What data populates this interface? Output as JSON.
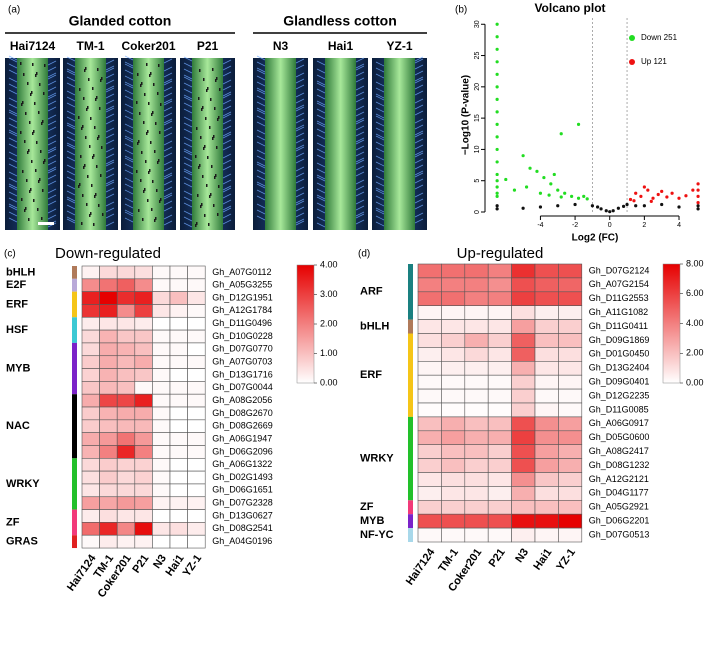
{
  "panel_a": {
    "label": "(a)",
    "groups": [
      {
        "name": "Glanded cotton",
        "samples": [
          "Hai7124",
          "TM-1",
          "Coker201",
          "P21"
        ]
      },
      {
        "name": "Glandless cotton",
        "samples": [
          "N3",
          "Hai1",
          "YZ-1"
        ]
      }
    ]
  },
  "chart_data": [
    {
      "type": "scatter",
      "label": "(b)",
      "title": "Volcano plot",
      "x_label": "Log2 (FC)",
      "y_label": "−Log10 (P-value)",
      "xlim": [
        -7.2,
        5.5
      ],
      "ylim": [
        0,
        31
      ],
      "xticks": [
        -4,
        -2,
        0,
        2,
        4
      ],
      "yticks": [
        0,
        5,
        10,
        15,
        20,
        25,
        30
      ],
      "thresholds": [
        -1,
        1
      ],
      "legend": "top-right",
      "series": [
        {
          "name": "Down 251",
          "color": "#22dd22",
          "x": [
            -6.5,
            -6.5,
            -6.5,
            -6.5,
            -6.5,
            -6.5,
            -6.5,
            -6.5,
            -6.5,
            -6.5,
            -6.5,
            -6.5,
            -6.5,
            -6.5,
            -6.5,
            -6.5,
            -6.5,
            -5,
            -4.6,
            -4.2,
            -3.8,
            -3.4,
            -3,
            -2.6,
            -2.2,
            -1.8,
            -1.5,
            -4,
            -3.5,
            -2.8,
            -4.8,
            -3.2,
            -1.8,
            -2.8,
            -1.3,
            -5.5,
            -6
          ],
          "values": [
            30,
            28,
            26,
            24,
            22,
            20,
            18,
            16,
            14,
            12,
            10,
            8,
            6,
            5,
            4,
            3,
            2.5,
            9,
            7,
            6.5,
            5.5,
            4.5,
            3.5,
            3,
            2.5,
            2.2,
            2.5,
            3,
            2.7,
            2.4,
            4,
            6,
            14,
            12.5,
            2.1,
            3.5,
            5.2
          ]
        },
        {
          "name": "Up 121",
          "color": "#ee1111",
          "x": [
            1.2,
            1.5,
            1.8,
            2,
            2.2,
            2.5,
            2.8,
            3,
            3.3,
            3.6,
            4,
            4.4,
            1.4,
            2.4,
            4.8,
            5.1,
            5.1,
            5.1,
            5.1
          ],
          "values": [
            2,
            3,
            2.5,
            4,
            3.5,
            2.2,
            2.8,
            3.3,
            2.4,
            3,
            2.2,
            2.6,
            1.8,
            1.7,
            3.5,
            1.5,
            2.5,
            3.5,
            4.5
          ]
        },
        {
          "color": "#111111",
          "x": [
            -1,
            -0.7,
            -0.5,
            -0.2,
            0,
            0.2,
            0.5,
            0.8,
            1,
            1.5,
            2,
            3,
            4,
            -2,
            -3,
            -4,
            -5,
            -6.5,
            -6.5,
            5.1,
            5.1
          ],
          "values": [
            1,
            0.8,
            0.5,
            0.2,
            0.05,
            0.2,
            0.6,
            0.9,
            1.2,
            1,
            1,
            1.2,
            0.8,
            1.2,
            1,
            0.8,
            0.6,
            1,
            0.5,
            0.5,
            1
          ]
        }
      ]
    },
    {
      "type": "heatmap",
      "label": "(c)",
      "title": "Down-regulated",
      "categories": [
        "Hai7124",
        "TM-1",
        "Coker201",
        "P21",
        "N3",
        "Hai1",
        "YZ-1"
      ],
      "colors": [
        "#ffffff",
        "#e60000"
      ],
      "zlim": [
        0,
        4
      ],
      "zticks": [
        {
          "value": 4,
          "label": "4.00"
        },
        {
          "value": 3,
          "label": "3.00"
        },
        {
          "value": 2,
          "label": "2.00"
        },
        {
          "value": 1,
          "label": "1.00"
        },
        {
          "value": 0,
          "label": "0.00"
        }
      ],
      "groups": [
        {
          "name": "bHLH",
          "color": "#b07a5a",
          "rows": [
            "Gh_A07G0112"
          ]
        },
        {
          "name": "E2F",
          "color": "#b9a9d8",
          "rows": [
            "Gh_A05G3255"
          ]
        },
        {
          "name": "ERF",
          "color": "#f5c518",
          "rows": [
            "Gh_D12G1951",
            "Gh_A12G1784"
          ]
        },
        {
          "name": "HSF",
          "color": "#3cc9d4",
          "rows": [
            "Gh_D11G0496",
            "Gh_D10G0228"
          ]
        },
        {
          "name": "MYB",
          "color": "#7b22c8",
          "rows": [
            "Gh_D07G0770",
            "Gh_A07G0703",
            "Gh_D13G1716",
            "Gh_D07G0044"
          ]
        },
        {
          "name": "NAC",
          "color": "#000000",
          "rows": [
            "Gh_A08G2056",
            "Gh_D08G2670",
            "Gh_D08G2669",
            "Gh_A06G1947",
            "Gh_D06G2096"
          ]
        },
        {
          "name": "WRKY",
          "color": "#22c02a",
          "rows": [
            "Gh_A06G1322",
            "Gh_D02G1493",
            "Gh_D06G1651",
            "Gh_D07G2328"
          ]
        },
        {
          "name": "ZF",
          "color": "#f23a7a",
          "rows": [
            "Gh_D13G0627",
            "Gh_D08G2541"
          ]
        },
        {
          "name": "GRAS",
          "color": "#e02020",
          "rows": [
            "Gh_A04G0196"
          ]
        }
      ],
      "values": [
        [
          0.2,
          0.6,
          0.6,
          0.5,
          0.1,
          0.1,
          0.1
        ],
        [
          1.8,
          2.2,
          2.5,
          1.8,
          0.1,
          0.1,
          0.1
        ],
        [
          3.5,
          4,
          3.3,
          3.5,
          0.6,
          1,
          0.4
        ],
        [
          3.2,
          3.5,
          1.8,
          3,
          0.4,
          0.2,
          0.1
        ],
        [
          0.3,
          0.4,
          0.4,
          0.3,
          0,
          0,
          0
        ],
        [
          0.6,
          1.2,
          0.9,
          0.9,
          0.1,
          0.1,
          0.1
        ],
        [
          0.6,
          1.3,
          1.2,
          1,
          0.1,
          0.1,
          0
        ],
        [
          0.8,
          1.3,
          1.1,
          1.3,
          0.1,
          0.1,
          0.1
        ],
        [
          0.7,
          1.2,
          1,
          0.9,
          0.1,
          0,
          0
        ],
        [
          0.9,
          1.1,
          1,
          0.1,
          0.1,
          0.1,
          0.1
        ],
        [
          1.3,
          2.9,
          2.9,
          3.5,
          0.1,
          0.1,
          0.1
        ],
        [
          0.8,
          1.2,
          1.3,
          1.3,
          0.1,
          0,
          0
        ],
        [
          0.8,
          1,
          1.1,
          1.1,
          0.1,
          0,
          0
        ],
        [
          1.3,
          1.6,
          2.2,
          1.6,
          0.1,
          0.1,
          0.1
        ],
        [
          1.2,
          2,
          3.4,
          2,
          0.1,
          0.1,
          0.1
        ],
        [
          0.6,
          0.8,
          0.7,
          0.7,
          0.1,
          0,
          0
        ],
        [
          0.5,
          0.8,
          0.6,
          0.7,
          0.1,
          0,
          0
        ],
        [
          0.4,
          0.6,
          0.6,
          0.6,
          0.1,
          0,
          0
        ],
        [
          1.5,
          1.4,
          1.6,
          1.5,
          0.2,
          0.2,
          0.2
        ],
        [
          0.3,
          0.5,
          0.4,
          0.4,
          0,
          0,
          0
        ],
        [
          2.3,
          3.4,
          1.9,
          3.8,
          0.4,
          0.5,
          0.3
        ],
        [
          0.1,
          0.3,
          0.2,
          0.2,
          0,
          0,
          0
        ]
      ]
    },
    {
      "type": "heatmap",
      "label": "(d)",
      "title": "Up-regulated",
      "categories": [
        "Hai7124",
        "TM-1",
        "Coker201",
        "P21",
        "N3",
        "Hai1",
        "YZ-1"
      ],
      "colors": [
        "#ffffff",
        "#e60000"
      ],
      "zlim": [
        0,
        8
      ],
      "zticks": [
        {
          "value": 8,
          "label": "8.00"
        },
        {
          "value": 6,
          "label": "6.00"
        },
        {
          "value": 4,
          "label": "4.00"
        },
        {
          "value": 2,
          "label": "2.00"
        },
        {
          "value": 0,
          "label": "0.00"
        }
      ],
      "groups": [
        {
          "name": "ARF",
          "color": "#1a8080",
          "rows": [
            "Gh_D07G2124",
            "Gh_A07G2154",
            "Gh_D11G2553",
            "Gh_A11G1082"
          ]
        },
        {
          "name": "bHLH",
          "color": "#b07a5a",
          "rows": [
            "Gh_D11G0411"
          ]
        },
        {
          "name": "ERF",
          "color": "#f5c518",
          "rows": [
            "Gh_D09G1869",
            "Gh_D01G0450",
            "Gh_D13G2404",
            "Gh_D09G0401",
            "Gh_D12G2235",
            "Gh_D11G0085"
          ]
        },
        {
          "name": "WRKY",
          "color": "#22c02a",
          "rows": [
            "Gh_A06G0917",
            "Gh_D05G0600",
            "Gh_A08G2417",
            "Gh_D08G1232",
            "Gh_A12G2121",
            "Gh_D04G1177"
          ]
        },
        {
          "name": "ZF",
          "color": "#f23a7a",
          "rows": [
            "Gh_A05G2921"
          ]
        },
        {
          "name": "MYB",
          "color": "#7b22c8",
          "rows": [
            "Gh_D06G2201"
          ]
        },
        {
          "name": "NF-YC",
          "color": "#a8d8ea",
          "rows": [
            "Gh_D07G0513"
          ]
        }
      ],
      "values": [
        [
          4.5,
          4.5,
          4.5,
          4,
          6.5,
          5.5,
          5.5
        ],
        [
          4,
          4,
          4,
          3.5,
          5.5,
          5,
          4.8
        ],
        [
          4.5,
          4.5,
          4,
          4,
          6,
          5.5,
          5.5
        ],
        [
          0.3,
          0.3,
          0.3,
          0.3,
          1,
          0.5,
          0.5
        ],
        [
          0.8,
          0.8,
          0.8,
          0.8,
          3,
          1.5,
          1.5
        ],
        [
          1,
          1.5,
          2.5,
          1.5,
          5,
          2,
          2
        ],
        [
          0.5,
          0.8,
          1.2,
          0.8,
          5,
          1,
          1
        ],
        [
          0.3,
          0.5,
          0.5,
          0.5,
          2.5,
          0.8,
          0.8
        ],
        [
          0.2,
          0.2,
          0.2,
          0.2,
          1.5,
          0.3,
          0.3
        ],
        [
          0.2,
          0.2,
          0.2,
          0.2,
          1.5,
          0.2,
          0.2
        ],
        [
          0.1,
          0.1,
          0.1,
          0.1,
          1.5,
          0.3,
          0.2
        ],
        [
          2,
          2.5,
          2,
          2,
          5.5,
          3.5,
          3
        ],
        [
          2.5,
          3,
          2.5,
          2.5,
          6,
          3.5,
          3.5
        ],
        [
          1.5,
          2,
          2,
          1.5,
          5.5,
          3,
          2.5
        ],
        [
          1.5,
          2,
          1.5,
          1.5,
          5.5,
          3,
          2.5
        ],
        [
          0.8,
          1,
          1,
          0.8,
          3.5,
          1.8,
          1.5
        ],
        [
          0.5,
          0.8,
          0.8,
          0.5,
          2.5,
          1,
          1
        ],
        [
          1.5,
          1.5,
          1.5,
          1.5,
          2,
          2,
          2
        ],
        [
          5.5,
          5.5,
          5.5,
          5.5,
          7.5,
          7.5,
          8
        ],
        [
          0.2,
          0.2,
          0.2,
          0.2,
          0.5,
          0.3,
          0.3
        ]
      ]
    }
  ]
}
